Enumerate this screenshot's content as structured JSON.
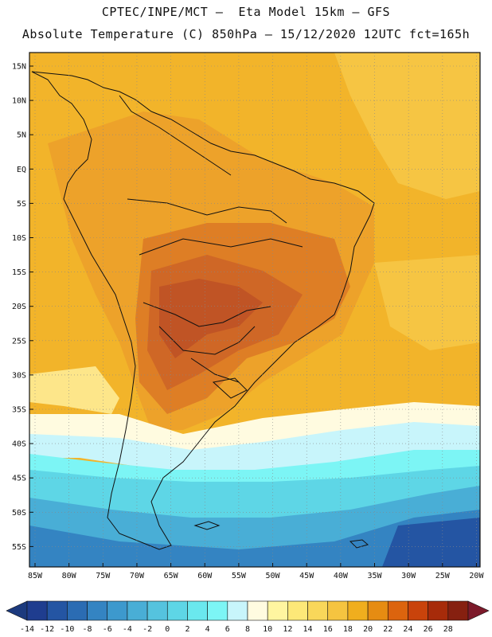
{
  "title_line1": "CPTEC/INPE/MCT –  Eta Model 15km – GFS",
  "title_line2": "Absolute Temperature (C) 850hPa – 15/12/2020 12UTC fct=165h",
  "lat_labels": [
    "15N",
    "10N",
    "5N",
    "EQ",
    "5S",
    "10S",
    "15S",
    "20S",
    "25S",
    "30S",
    "35S",
    "40S",
    "45S",
    "50S",
    "55S"
  ],
  "lon_labels": [
    "85W",
    "80W",
    "75W",
    "70W",
    "65W",
    "60W",
    "55W",
    "50W",
    "45W",
    "40W",
    "35W",
    "30W",
    "25W",
    "20W"
  ],
  "colorbar": {
    "labels": [
      "-14",
      "-12",
      "-10",
      "-8",
      "-6",
      "-4",
      "-2",
      "0",
      "2",
      "4",
      "6",
      "8",
      "10",
      "12",
      "14",
      "16",
      "18",
      "20",
      "22",
      "24",
      "26",
      "28"
    ],
    "colors": [
      "#1f3d8f",
      "#2455a3",
      "#2b6cb3",
      "#3484c2",
      "#3d99cd",
      "#49aed6",
      "#55c3de",
      "#5ed6e6",
      "#6ae8ee",
      "#7cf5f5",
      "#c8f5fb",
      "#fffbe0",
      "#fff5a0",
      "#fde878",
      "#f9d75a",
      "#f5c440",
      "#f0ae1e",
      "#e68c12",
      "#dc640e",
      "#c9430b",
      "#a72b0a",
      "#862010"
    ],
    "end_left": "#1c3a7e",
    "end_right": "#7c1a2a"
  },
  "field_colors": {
    "ocean_north": "#f2b42a",
    "ocean_north_light": "#f6c543",
    "land_warm": "#eda22a",
    "land_hot": "#de7e25",
    "land_hotter": "#cf6726",
    "land_hottest": "#c05425",
    "pacific_light": "#fde68a",
    "pale": "#fffbe0",
    "very_pale": "#c8f5fb",
    "cyan_bright": "#7cf5f5",
    "cyan": "#5ed6e6",
    "cyan_mid": "#49aed6",
    "blue_mid": "#3484c2",
    "blue_dark": "#2455a3"
  }
}
